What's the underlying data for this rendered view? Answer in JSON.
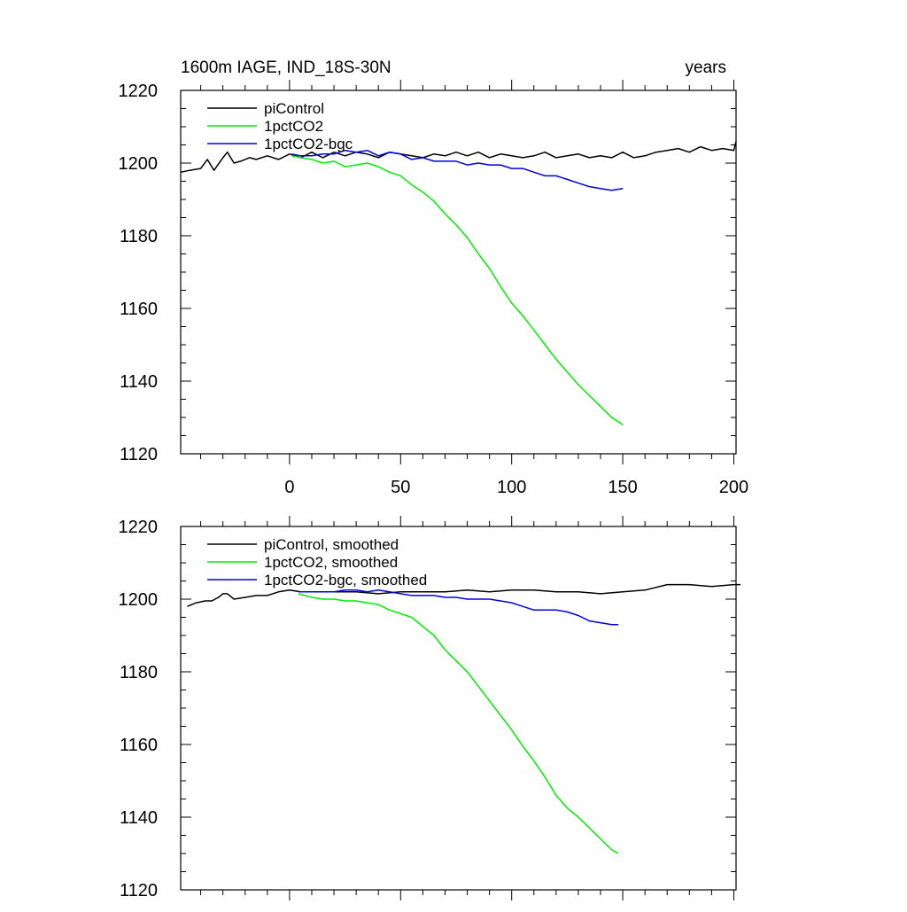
{
  "title_left": "1600m IAGE, IND_18S-30N",
  "title_right": "years",
  "colors": {
    "piControl": "#000000",
    "1pctCO2": "#00ee00",
    "1pctCO2-bgc": "#0000dd"
  },
  "chart_data": [
    {
      "type": "line",
      "xlim": [
        -49,
        201
      ],
      "ylim": [
        1120,
        1220
      ],
      "xticks": [
        0,
        50,
        100,
        150,
        200
      ],
      "xtick_labels": [
        "0",
        "50",
        "100",
        "150",
        "200"
      ],
      "yticks": [
        1120,
        1140,
        1160,
        1180,
        1200,
        1220
      ],
      "ytick_labels": [
        "1120",
        "1140",
        "1160",
        "1180",
        "1200",
        "1220"
      ],
      "legend_position": "top-left",
      "series": [
        {
          "name": "piControl",
          "color": "#000000",
          "x": [
            -49,
            -45,
            -40,
            -37,
            -34,
            -30,
            -28,
            -25,
            -22,
            -18,
            -15,
            -10,
            -5,
            0,
            5,
            10,
            15,
            20,
            25,
            30,
            35,
            40,
            45,
            50,
            55,
            60,
            65,
            70,
            75,
            80,
            85,
            90,
            95,
            100,
            105,
            110,
            115,
            120,
            125,
            130,
            135,
            140,
            145,
            150,
            155,
            160,
            165,
            170,
            175,
            180,
            185,
            190,
            195,
            200,
            201
          ],
          "y": [
            1197.5,
            1198,
            1198.5,
            1201,
            1198,
            1201.5,
            1203,
            1200,
            1200.5,
            1201.5,
            1201,
            1202,
            1201,
            1202.5,
            1201.5,
            1203,
            1201.5,
            1203,
            1202,
            1203,
            1202.5,
            1201.5,
            1203,
            1202.5,
            1202,
            1201.5,
            1202.5,
            1202,
            1203,
            1202,
            1203,
            1201.5,
            1202.5,
            1202,
            1201.5,
            1202,
            1203,
            1201.5,
            1202,
            1202.5,
            1201.5,
            1202,
            1201.5,
            1203,
            1201.5,
            1202,
            1203,
            1203.5,
            1204,
            1203,
            1204.5,
            1203.5,
            1204,
            1203.5,
            1206
          ]
        },
        {
          "name": "1pctCO2",
          "color": "#00ee00",
          "x": [
            1,
            5,
            10,
            15,
            20,
            25,
            30,
            35,
            40,
            45,
            50,
            55,
            60,
            65,
            70,
            75,
            80,
            85,
            90,
            95,
            100,
            105,
            110,
            115,
            120,
            125,
            130,
            135,
            140,
            145,
            150
          ],
          "y": [
            1202,
            1201.5,
            1201,
            1200,
            1200.5,
            1199,
            1199.5,
            1200,
            1199,
            1197.5,
            1196.5,
            1194,
            1192,
            1189.5,
            1186,
            1183,
            1179.5,
            1175,
            1171,
            1166,
            1161.5,
            1158,
            1154,
            1150,
            1146,
            1142.5,
            1139,
            1136,
            1133,
            1130,
            1128
          ]
        },
        {
          "name": "1pctCO2-bgc",
          "color": "#0000dd",
          "x": [
            1,
            5,
            10,
            15,
            20,
            25,
            30,
            35,
            40,
            45,
            50,
            55,
            60,
            65,
            70,
            75,
            80,
            85,
            90,
            95,
            100,
            105,
            110,
            115,
            120,
            125,
            130,
            135,
            140,
            145,
            150
          ],
          "y": [
            1202.5,
            1202,
            1202,
            1202.5,
            1202.5,
            1203.5,
            1203,
            1203.5,
            1202,
            1203,
            1202.5,
            1201,
            1201.5,
            1200.5,
            1200.5,
            1200.5,
            1199.5,
            1200,
            1199.5,
            1199.5,
            1198.5,
            1198.5,
            1197.5,
            1196.5,
            1196.5,
            1195.5,
            1194.5,
            1193.5,
            1193,
            1192.5,
            1193
          ]
        }
      ]
    },
    {
      "type": "line",
      "xlim": [
        -49,
        201
      ],
      "ylim": [
        1120,
        1220
      ],
      "xticks": [
        0,
        50,
        100,
        150,
        200
      ],
      "yticks": [
        1120,
        1140,
        1160,
        1180,
        1200,
        1220
      ],
      "ytick_labels": [
        "1120",
        "1140",
        "1160",
        "1180",
        "1200",
        "1220"
      ],
      "legend_position": "top-left",
      "series": [
        {
          "name": "piControl, smoothed",
          "color": "#000000",
          "x": [
            -46,
            -42,
            -38,
            -35,
            -32,
            -30,
            -28,
            -25,
            -20,
            -15,
            -10,
            -5,
            0,
            5,
            10,
            20,
            30,
            40,
            50,
            60,
            70,
            80,
            90,
            100,
            110,
            120,
            130,
            140,
            150,
            160,
            170,
            180,
            190,
            200,
            203
          ],
          "y": [
            1198,
            1199,
            1199.5,
            1199.5,
            1200.5,
            1201.5,
            1201.5,
            1200,
            1200.5,
            1201,
            1201,
            1202,
            1202.5,
            1202,
            1202,
            1202,
            1202,
            1201.5,
            1202,
            1202,
            1202,
            1202.5,
            1202,
            1202.5,
            1202.5,
            1202,
            1202,
            1201.5,
            1202,
            1202.5,
            1204,
            1204,
            1203.5,
            1204,
            1204
          ]
        },
        {
          "name": "1pctCO2, smoothed",
          "color": "#00ee00",
          "x": [
            4,
            10,
            15,
            20,
            25,
            30,
            35,
            40,
            45,
            50,
            55,
            60,
            65,
            70,
            75,
            80,
            85,
            90,
            95,
            100,
            105,
            110,
            115,
            120,
            125,
            130,
            135,
            140,
            145,
            148
          ],
          "y": [
            1201.5,
            1200.5,
            1200,
            1200,
            1199.5,
            1199.5,
            1199,
            1198.5,
            1197,
            1196,
            1195,
            1192.5,
            1190,
            1186,
            1183,
            1180,
            1176,
            1172,
            1168,
            1164,
            1159.5,
            1155.5,
            1151,
            1146,
            1142.5,
            1140,
            1137,
            1134,
            1131,
            1130
          ]
        },
        {
          "name": "1pctCO2-bgc, smoothed",
          "color": "#0000dd",
          "x": [
            4,
            10,
            15,
            20,
            25,
            30,
            35,
            40,
            45,
            50,
            55,
            60,
            65,
            70,
            75,
            80,
            85,
            90,
            95,
            100,
            105,
            110,
            115,
            120,
            125,
            130,
            135,
            140,
            145,
            148
          ],
          "y": [
            1202,
            1202,
            1202,
            1202,
            1202.5,
            1202.5,
            1202,
            1202.5,
            1202,
            1201.5,
            1201,
            1201,
            1201,
            1200.5,
            1200.5,
            1200,
            1200,
            1200,
            1199.5,
            1199,
            1198,
            1197,
            1197,
            1197,
            1196.5,
            1195.5,
            1194,
            1193.5,
            1193,
            1193
          ]
        }
      ]
    }
  ]
}
